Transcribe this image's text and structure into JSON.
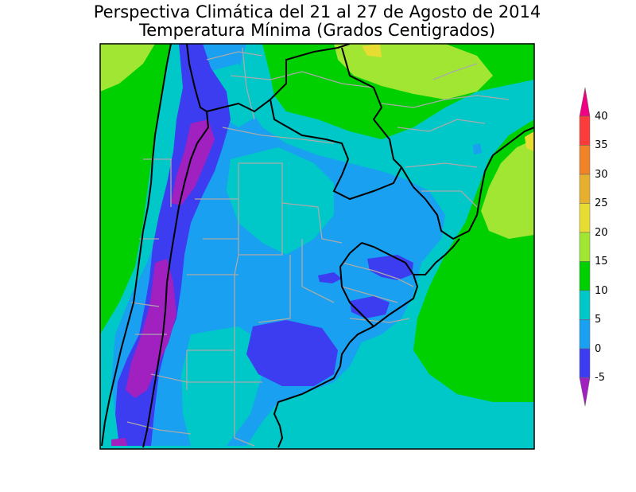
{
  "header": {
    "title": "Perspectiva Climática del 21 al 27 de Agosto de 2014",
    "subtitle": "Temperatura Mínima (Grados Centigrados)"
  },
  "colorbar": {
    "labels": [
      "-5",
      "0",
      "5",
      "10",
      "15",
      "20",
      "25",
      "30",
      "35",
      "40"
    ],
    "bins": [
      {
        "range": "< -5",
        "color": "#a020c0"
      },
      {
        "range": "-5 a 0",
        "color": "#3c3cf0"
      },
      {
        "range": "0 a 5",
        "color": "#19a0f0"
      },
      {
        "range": "5 a 10",
        "color": "#00c8c8"
      },
      {
        "range": "10 a 15",
        "color": "#00d000"
      },
      {
        "range": "15 a 20",
        "color": "#a0e632"
      },
      {
        "range": "20 a 25",
        "color": "#e6dc32"
      },
      {
        "range": "25 a 30",
        "color": "#e6af2d"
      },
      {
        "range": "30 a 35",
        "color": "#f08228"
      },
      {
        "range": "35 a 40",
        "color": "#fa3c3c"
      },
      {
        "range": "> 40",
        "color": "#f00082"
      }
    ]
  },
  "colors": {
    "border_lines": "#aaaaaa",
    "coast_lines": "#000000"
  }
}
